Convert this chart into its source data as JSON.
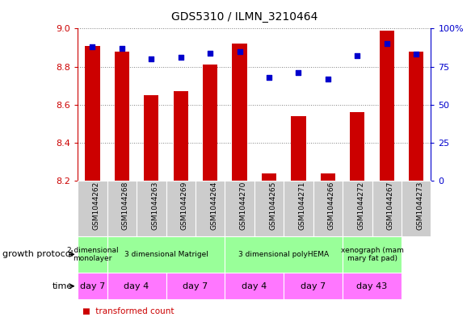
{
  "title": "GDS5310 / ILMN_3210464",
  "samples": [
    "GSM1044262",
    "GSM1044268",
    "GSM1044263",
    "GSM1044269",
    "GSM1044264",
    "GSM1044270",
    "GSM1044265",
    "GSM1044271",
    "GSM1044266",
    "GSM1044272",
    "GSM1044267",
    "GSM1044273"
  ],
  "transformed_count": [
    8.91,
    8.88,
    8.65,
    8.67,
    8.81,
    8.92,
    8.24,
    8.54,
    8.24,
    8.56,
    8.99,
    8.88
  ],
  "percentile_rank": [
    88,
    87,
    80,
    81,
    84,
    85,
    68,
    71,
    67,
    82,
    90,
    83
  ],
  "ylim_left": [
    8.2,
    9.0
  ],
  "ylim_right": [
    0,
    100
  ],
  "yticks_left": [
    8.2,
    8.4,
    8.6,
    8.8,
    9.0
  ],
  "yticks_right": [
    0,
    25,
    50,
    75,
    100
  ],
  "bar_color": "#cc0000",
  "dot_color": "#0000cc",
  "bar_width": 0.5,
  "growth_protocol_groups": [
    {
      "label": "2 dimensional\nmonolayer",
      "start": 0,
      "end": 1,
      "color": "#99ff99"
    },
    {
      "label": "3 dimensional Matrigel",
      "start": 1,
      "end": 5,
      "color": "#99ff99"
    },
    {
      "label": "3 dimensional polyHEMA",
      "start": 5,
      "end": 9,
      "color": "#99ff99"
    },
    {
      "label": "xenograph (mam\nmary fat pad)",
      "start": 9,
      "end": 11,
      "color": "#99ff99"
    }
  ],
  "time_groups": [
    {
      "label": "day 7",
      "start": 0,
      "end": 1,
      "color": "#ff77ff"
    },
    {
      "label": "day 4",
      "start": 1,
      "end": 3,
      "color": "#ff77ff"
    },
    {
      "label": "day 7",
      "start": 3,
      "end": 5,
      "color": "#ff77ff"
    },
    {
      "label": "day 4",
      "start": 5,
      "end": 7,
      "color": "#ff77ff"
    },
    {
      "label": "day 7",
      "start": 7,
      "end": 9,
      "color": "#ff77ff"
    },
    {
      "label": "day 43",
      "start": 9,
      "end": 11,
      "color": "#ff77ff"
    }
  ],
  "left_axis_color": "#cc0000",
  "right_axis_color": "#0000cc",
  "sample_bg_color": "#cccccc",
  "figsize": [
    5.83,
    3.93
  ],
  "dpi": 100
}
